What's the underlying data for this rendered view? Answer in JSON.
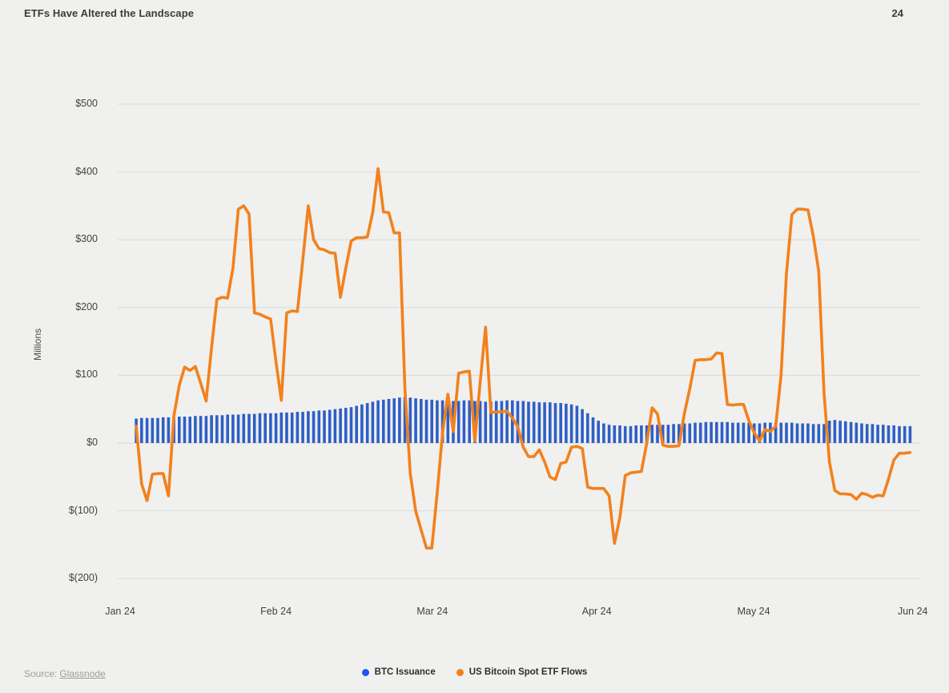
{
  "header": {
    "title": "ETFs Have Altered the Landscape",
    "page_number": "24"
  },
  "source": {
    "prefix": "Source:",
    "link_label": "Glassnode"
  },
  "legend": [
    {
      "label": "BTC Issuance",
      "color": "#1b57f0"
    },
    {
      "label": "US Bitcoin Spot ETF Flows",
      "color": "#f2811d"
    }
  ],
  "colors": {
    "background": "#f0f0ee",
    "gridline": "#d9d9d7",
    "bar_blue": "#2e5fc5",
    "line_orange": "#f2811d",
    "text_dark": "#3b3b3b",
    "text_muted": "#9c9c9c"
  },
  "chart_data": {
    "type": "bar+line combo",
    "title": "ETFs Have Altered the Landscape",
    "xlabel": "",
    "ylabel": "Millions",
    "x_unit": "days (daily data, Jan 2024 - Jun 2024)",
    "ylim": [
      -200,
      500
    ],
    "grid": "horizontal only",
    "legend_position": "bottom center",
    "y_ticks": [
      {
        "value": 500,
        "label": "$500"
      },
      {
        "value": 400,
        "label": "$400"
      },
      {
        "value": 300,
        "label": "$300"
      },
      {
        "value": 200,
        "label": "$200"
      },
      {
        "value": 100,
        "label": "$100"
      },
      {
        "value": 0,
        "label": "$0"
      },
      {
        "value": -100,
        "label": "$(100)"
      },
      {
        "value": -200,
        "label": "$(200)"
      }
    ],
    "x_ticks": [
      {
        "day": 0,
        "label": "Jan 24"
      },
      {
        "day": 29,
        "label": "Feb 24"
      },
      {
        "day": 58.1,
        "label": "Mar 24"
      },
      {
        "day": 88.7,
        "label": "Apr 24"
      },
      {
        "day": 117.9,
        "label": "May 24"
      },
      {
        "day": 147.5,
        "label": "Jun 24"
      }
    ],
    "series": [
      {
        "name": "BTC Issuance",
        "type": "bar",
        "color": "#2e5fc5",
        "unit": "USD millions per day",
        "points": [
          [
            3,
            36
          ],
          [
            4,
            37
          ],
          [
            5,
            37
          ],
          [
            6,
            37
          ],
          [
            7,
            37
          ],
          [
            8,
            38
          ],
          [
            9,
            38
          ],
          [
            10,
            38
          ],
          [
            11,
            39
          ],
          [
            12,
            39
          ],
          [
            13,
            39
          ],
          [
            14,
            40
          ],
          [
            15,
            40
          ],
          [
            16,
            40
          ],
          [
            17,
            41
          ],
          [
            18,
            41
          ],
          [
            19,
            41
          ],
          [
            20,
            42
          ],
          [
            21,
            42
          ],
          [
            22,
            42
          ],
          [
            23,
            43
          ],
          [
            24,
            43
          ],
          [
            25,
            43
          ],
          [
            26,
            44
          ],
          [
            27,
            44
          ],
          [
            28,
            44
          ],
          [
            29,
            44
          ],
          [
            30,
            45
          ],
          [
            31,
            45
          ],
          [
            32,
            45
          ],
          [
            33,
            46
          ],
          [
            34,
            46
          ],
          [
            35,
            47
          ],
          [
            36,
            47
          ],
          [
            37,
            48
          ],
          [
            38,
            48
          ],
          [
            39,
            49
          ],
          [
            40,
            50
          ],
          [
            41,
            51
          ],
          [
            42,
            52
          ],
          [
            43,
            53
          ],
          [
            44,
            55
          ],
          [
            45,
            57
          ],
          [
            46,
            59
          ],
          [
            47,
            61
          ],
          [
            48,
            63
          ],
          [
            49,
            64
          ],
          [
            50,
            65
          ],
          [
            51,
            66
          ],
          [
            52,
            67
          ],
          [
            53,
            68
          ],
          [
            54,
            67
          ],
          [
            55,
            66
          ],
          [
            56,
            65
          ],
          [
            57,
            64
          ],
          [
            58,
            64
          ],
          [
            59,
            63
          ],
          [
            60,
            63
          ],
          [
            61,
            63
          ],
          [
            62,
            62
          ],
          [
            63,
            62
          ],
          [
            64,
            63
          ],
          [
            65,
            63
          ],
          [
            66,
            62
          ],
          [
            67,
            62
          ],
          [
            68,
            61
          ],
          [
            69,
            61
          ],
          [
            70,
            62
          ],
          [
            71,
            62
          ],
          [
            72,
            63
          ],
          [
            73,
            63
          ],
          [
            74,
            62
          ],
          [
            75,
            62
          ],
          [
            76,
            61
          ],
          [
            77,
            61
          ],
          [
            78,
            60
          ],
          [
            79,
            60
          ],
          [
            80,
            60
          ],
          [
            81,
            59
          ],
          [
            82,
            59
          ],
          [
            83,
            58
          ],
          [
            84,
            57
          ],
          [
            85,
            55
          ],
          [
            86,
            50
          ],
          [
            87,
            44
          ],
          [
            88,
            38
          ],
          [
            89,
            33
          ],
          [
            90,
            29
          ],
          [
            91,
            27
          ],
          [
            92,
            26
          ],
          [
            93,
            26
          ],
          [
            94,
            25
          ],
          [
            95,
            25
          ],
          [
            96,
            26
          ],
          [
            97,
            26
          ],
          [
            98,
            26
          ],
          [
            99,
            27
          ],
          [
            100,
            27
          ],
          [
            101,
            27
          ],
          [
            102,
            27
          ],
          [
            103,
            28
          ],
          [
            104,
            28
          ],
          [
            105,
            29
          ],
          [
            106,
            29
          ],
          [
            107,
            30
          ],
          [
            108,
            30
          ],
          [
            109,
            31
          ],
          [
            110,
            31
          ],
          [
            111,
            31
          ],
          [
            112,
            31
          ],
          [
            113,
            31
          ],
          [
            114,
            30
          ],
          [
            115,
            30
          ],
          [
            116,
            30
          ],
          [
            117,
            30
          ],
          [
            118,
            29
          ],
          [
            119,
            29
          ],
          [
            120,
            30
          ],
          [
            121,
            30
          ],
          [
            122,
            30
          ],
          [
            123,
            30
          ],
          [
            124,
            30
          ],
          [
            125,
            30
          ],
          [
            126,
            29
          ],
          [
            127,
            29
          ],
          [
            128,
            29
          ],
          [
            129,
            28
          ],
          [
            130,
            28
          ],
          [
            131,
            28
          ],
          [
            132,
            33
          ],
          [
            133,
            34
          ],
          [
            134,
            33
          ],
          [
            135,
            32
          ],
          [
            136,
            31
          ],
          [
            137,
            30
          ],
          [
            138,
            29
          ],
          [
            139,
            28
          ],
          [
            140,
            28
          ],
          [
            141,
            27
          ],
          [
            142,
            27
          ],
          [
            143,
            26
          ],
          [
            144,
            26
          ],
          [
            145,
            25
          ],
          [
            146,
            25
          ],
          [
            147,
            25
          ]
        ]
      },
      {
        "name": "US Bitcoin Spot ETF Flows",
        "type": "line",
        "color": "#f2811d",
        "unit": "USD millions per day",
        "points": [
          [
            3,
            25
          ],
          [
            4,
            -60
          ],
          [
            5,
            -85
          ],
          [
            6,
            -46
          ],
          [
            7,
            -45
          ],
          [
            8,
            -45
          ],
          [
            9,
            -78
          ],
          [
            10,
            40
          ],
          [
            11,
            85
          ],
          [
            12,
            112
          ],
          [
            13,
            107
          ],
          [
            14,
            113
          ],
          [
            15,
            88
          ],
          [
            16,
            62
          ],
          [
            17,
            140
          ],
          [
            18,
            212
          ],
          [
            19,
            215
          ],
          [
            20,
            214
          ],
          [
            21,
            258
          ],
          [
            22,
            345
          ],
          [
            23,
            350
          ],
          [
            24,
            338
          ],
          [
            25,
            192
          ],
          [
            26,
            190
          ],
          [
            27,
            186
          ],
          [
            28,
            183
          ],
          [
            29,
            120
          ],
          [
            30,
            63
          ],
          [
            31,
            192
          ],
          [
            32,
            195
          ],
          [
            33,
            194
          ],
          [
            34,
            270
          ],
          [
            35,
            350
          ],
          [
            36,
            300
          ],
          [
            37,
            287
          ],
          [
            38,
            285
          ],
          [
            39,
            281
          ],
          [
            40,
            280
          ],
          [
            41,
            215
          ],
          [
            42,
            258
          ],
          [
            43,
            298
          ],
          [
            44,
            303
          ],
          [
            45,
            303
          ],
          [
            46,
            304
          ],
          [
            47,
            340
          ],
          [
            48,
            405
          ],
          [
            49,
            341
          ],
          [
            50,
            340
          ],
          [
            51,
            310
          ],
          [
            52,
            310
          ],
          [
            53,
            80
          ],
          [
            54,
            -45
          ],
          [
            55,
            -100
          ],
          [
            56,
            -128
          ],
          [
            57,
            -155
          ],
          [
            58,
            -155
          ],
          [
            59,
            -74
          ],
          [
            60,
            15
          ],
          [
            61,
            72
          ],
          [
            62,
            17
          ],
          [
            63,
            103
          ],
          [
            64,
            105
          ],
          [
            65,
            106
          ],
          [
            66,
            3
          ],
          [
            67,
            90
          ],
          [
            68,
            171
          ],
          [
            69,
            45
          ],
          [
            70,
            46
          ],
          [
            71,
            46
          ],
          [
            72,
            47
          ],
          [
            73,
            37
          ],
          [
            74,
            24
          ],
          [
            75,
            -6
          ],
          [
            76,
            -20
          ],
          [
            77,
            -20
          ],
          [
            78,
            -10
          ],
          [
            79,
            -28
          ],
          [
            80,
            -50
          ],
          [
            81,
            -54
          ],
          [
            82,
            -30
          ],
          [
            83,
            -28
          ],
          [
            84,
            -6
          ],
          [
            85,
            -5
          ],
          [
            86,
            -8
          ],
          [
            87,
            -65
          ],
          [
            88,
            -67
          ],
          [
            89,
            -67
          ],
          [
            90,
            -67
          ],
          [
            91,
            -78
          ],
          [
            92,
            -148
          ],
          [
            93,
            -110
          ],
          [
            94,
            -48
          ],
          [
            95,
            -44
          ],
          [
            96,
            -43
          ],
          [
            97,
            -42
          ],
          [
            98,
            0
          ],
          [
            99,
            52
          ],
          [
            100,
            43
          ],
          [
            101,
            -3
          ],
          [
            102,
            -5
          ],
          [
            103,
            -5
          ],
          [
            104,
            -4
          ],
          [
            105,
            43
          ],
          [
            106,
            80
          ],
          [
            107,
            122
          ],
          [
            108,
            123
          ],
          [
            109,
            123
          ],
          [
            110,
            124
          ],
          [
            111,
            133
          ],
          [
            112,
            132
          ],
          [
            113,
            57
          ],
          [
            114,
            56
          ],
          [
            115,
            57
          ],
          [
            116,
            57
          ],
          [
            117,
            33
          ],
          [
            118,
            15
          ],
          [
            119,
            3
          ],
          [
            120,
            20
          ],
          [
            121,
            17
          ],
          [
            122,
            25
          ],
          [
            123,
            100
          ],
          [
            124,
            250
          ],
          [
            125,
            337
          ],
          [
            126,
            345
          ],
          [
            127,
            345
          ],
          [
            128,
            344
          ],
          [
            129,
            305
          ],
          [
            130,
            254
          ],
          [
            131,
            73
          ],
          [
            132,
            -28
          ],
          [
            133,
            -70
          ],
          [
            134,
            -75
          ],
          [
            135,
            -75
          ],
          [
            136,
            -76
          ],
          [
            137,
            -83
          ],
          [
            138,
            -74
          ],
          [
            139,
            -76
          ],
          [
            140,
            -80
          ],
          [
            141,
            -77
          ],
          [
            142,
            -78
          ],
          [
            143,
            -53
          ],
          [
            144,
            -25
          ],
          [
            145,
            -15
          ],
          [
            146,
            -15
          ],
          [
            147,
            -14
          ]
        ]
      }
    ]
  }
}
